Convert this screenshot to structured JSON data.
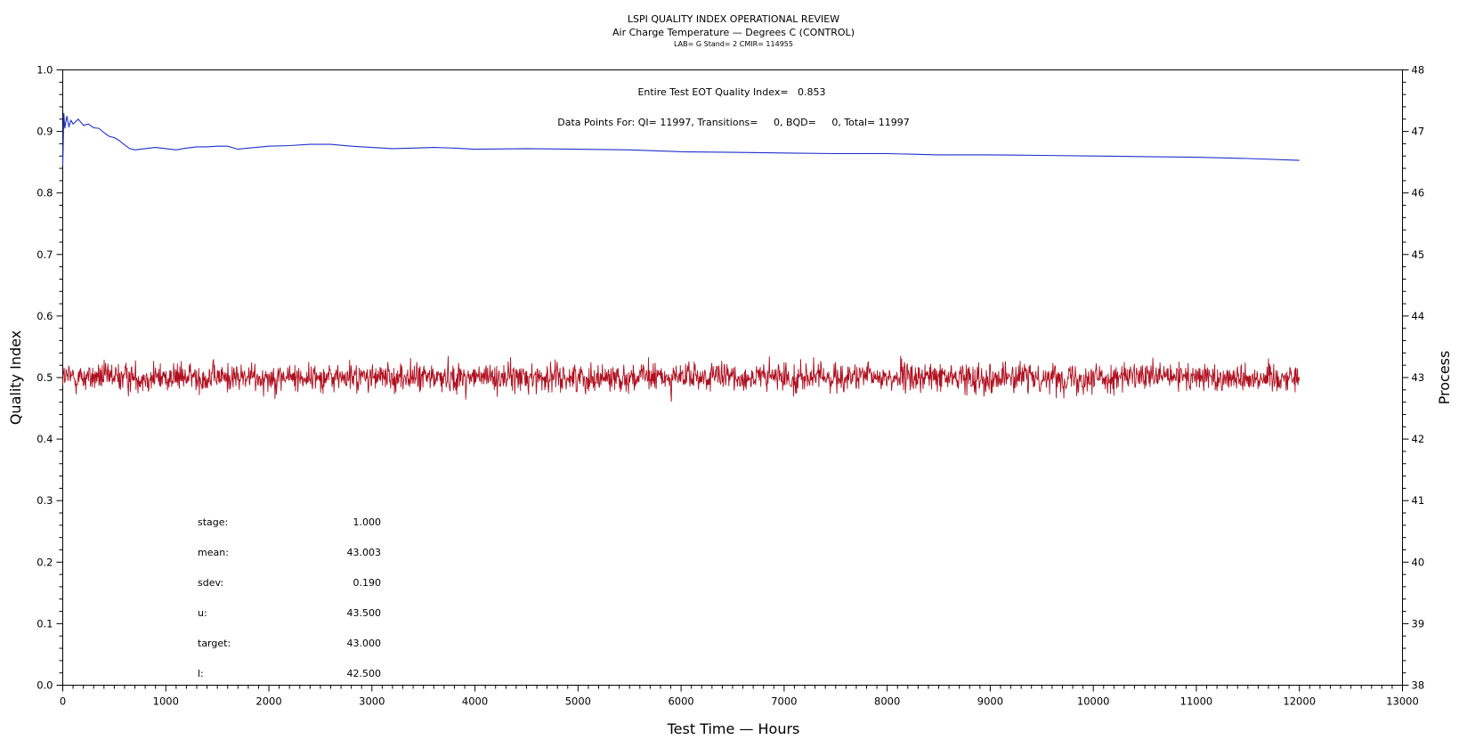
{
  "chart_data": {
    "type": "line",
    "title": "LSPI QUALITY INDEX OPERATIONAL REVIEW",
    "subtitle": "Air Charge Temperature — Degrees C (CONTROL)",
    "subtitle2": "LAB= G Stand= 2 CMIR= 114955",
    "annotation_qi": "Entire Test EOT Quality Index=   0.853",
    "annotation_points": "Data Points For: QI= 11997, Transitions=     0, BQD=     0, Total= 11997",
    "xlabel": "Test Time — Hours",
    "ylabel": "Quality Index",
    "y2label": "Process",
    "xlim": [
      0,
      13000
    ],
    "ylim": [
      0.0,
      1.0
    ],
    "y2lim": [
      38,
      48
    ],
    "x_ticks": [
      "0",
      "1000",
      "2000",
      "3000",
      "4000",
      "5000",
      "6000",
      "7000",
      "8000",
      "9000",
      "10000",
      "11000",
      "12000",
      "13000"
    ],
    "y_ticks": [
      "0.0",
      "0.1",
      "0.2",
      "0.3",
      "0.4",
      "0.5",
      "0.6",
      "0.7",
      "0.8",
      "0.9",
      "1.0"
    ],
    "y2_ticks": [
      "38",
      "39",
      "40",
      "41",
      "42",
      "43",
      "44",
      "45",
      "46",
      "47",
      "48"
    ],
    "colors": {
      "quality_index": "#1f2fcc",
      "process": "#b01020",
      "axis": "#000000"
    },
    "series": [
      {
        "axis": "left",
        "x": [
          0,
          10,
          20,
          40,
          60,
          80,
          100,
          150,
          200,
          250,
          300,
          350,
          400,
          450,
          500,
          550,
          600,
          650,
          700,
          800,
          900,
          1000,
          1100,
          1200,
          1300,
          1400,
          1500,
          1600,
          1700,
          1800,
          2000,
          2200,
          2400,
          2600,
          2800,
          3000,
          3200,
          3400,
          3600,
          3800,
          4000,
          4500,
          5000,
          5500,
          6000,
          6500,
          7000,
          7500,
          8000,
          8500,
          9000,
          9500,
          10000,
          10500,
          11000,
          11500,
          12000
        ],
        "values": [
          0.845,
          0.93,
          0.905,
          0.925,
          0.908,
          0.918,
          0.912,
          0.92,
          0.91,
          0.912,
          0.906,
          0.905,
          0.898,
          0.892,
          0.89,
          0.885,
          0.878,
          0.872,
          0.87,
          0.872,
          0.874,
          0.872,
          0.87,
          0.873,
          0.875,
          0.875,
          0.876,
          0.876,
          0.871,
          0.873,
          0.876,
          0.877,
          0.879,
          0.879,
          0.876,
          0.874,
          0.872,
          0.873,
          0.874,
          0.873,
          0.871,
          0.872,
          0.871,
          0.87,
          0.867,
          0.866,
          0.865,
          0.864,
          0.864,
          0.862,
          0.862,
          0.861,
          0.86,
          0.859,
          0.858,
          0.856,
          0.853
        ]
      },
      {
        "axis": "right",
        "x_range": [
          0,
          12000
        ],
        "mean": 43.003,
        "sdev": 0.19,
        "min": 42.12,
        "max": 43.79
      }
    ],
    "stats": [
      {
        "label": "stage:",
        "value": "1.000"
      },
      {
        "label": "mean:",
        "value": "43.003"
      },
      {
        "label": "sdev:",
        "value": "0.190"
      },
      {
        "label": "u:",
        "value": "43.500"
      },
      {
        "label": "target:",
        "value": "43.000"
      },
      {
        "label": "l:",
        "value": "42.500"
      }
    ]
  }
}
